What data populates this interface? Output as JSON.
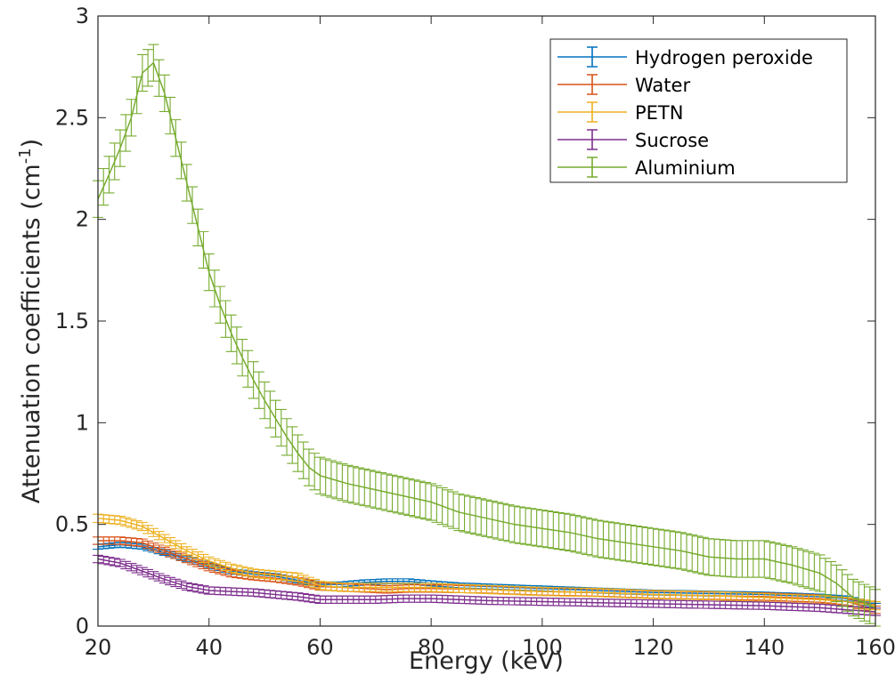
{
  "chart_data": {
    "type": "line",
    "error_bars": true,
    "xlabel": "Energy (keV)",
    "ylabel_main": "Attenuation coefficients (cm",
    "ylabel_sup": "-1",
    "ylabel_close": ")",
    "xlim": [
      20,
      160
    ],
    "ylim": [
      0,
      3
    ],
    "xticks": [
      20,
      40,
      60,
      80,
      100,
      120,
      140,
      160
    ],
    "yticks": [
      0,
      0.5,
      1,
      1.5,
      2,
      2.5,
      3
    ],
    "xtick_labels": [
      "20",
      "40",
      "60",
      "80",
      "100",
      "120",
      "140",
      "160"
    ],
    "ytick_labels": [
      "0",
      "0.5",
      "1",
      "1.5",
      "2",
      "2.5",
      "3"
    ],
    "grid": false,
    "legend_position": "top-right",
    "series": [
      {
        "name": "Hydrogen peroxide",
        "color": "#0072BD",
        "err": 0.012,
        "points": [
          [
            20,
            0.39
          ],
          [
            24,
            0.4
          ],
          [
            28,
            0.39
          ],
          [
            32,
            0.36
          ],
          [
            36,
            0.33
          ],
          [
            40,
            0.3
          ],
          [
            44,
            0.27
          ],
          [
            48,
            0.255
          ],
          [
            52,
            0.245
          ],
          [
            56,
            0.225
          ],
          [
            60,
            0.205
          ],
          [
            64,
            0.205
          ],
          [
            68,
            0.215
          ],
          [
            72,
            0.22
          ],
          [
            76,
            0.22
          ],
          [
            80,
            0.21
          ],
          [
            85,
            0.2
          ],
          [
            90,
            0.195
          ],
          [
            100,
            0.185
          ],
          [
            110,
            0.175
          ],
          [
            120,
            0.165
          ],
          [
            130,
            0.16
          ],
          [
            140,
            0.155
          ],
          [
            150,
            0.145
          ],
          [
            155,
            0.135
          ],
          [
            160,
            0.1
          ]
        ]
      },
      {
        "name": "Water",
        "color": "#D95319",
        "err": 0.018,
        "points": [
          [
            20,
            0.42
          ],
          [
            24,
            0.42
          ],
          [
            28,
            0.41
          ],
          [
            32,
            0.37
          ],
          [
            36,
            0.33
          ],
          [
            40,
            0.29
          ],
          [
            44,
            0.26
          ],
          [
            48,
            0.245
          ],
          [
            52,
            0.235
          ],
          [
            56,
            0.22
          ],
          [
            60,
            0.195
          ],
          [
            64,
            0.19
          ],
          [
            68,
            0.185
          ],
          [
            72,
            0.18
          ],
          [
            76,
            0.185
          ],
          [
            80,
            0.185
          ],
          [
            90,
            0.18
          ],
          [
            100,
            0.17
          ],
          [
            110,
            0.165
          ],
          [
            120,
            0.155
          ],
          [
            130,
            0.15
          ],
          [
            140,
            0.145
          ],
          [
            150,
            0.135
          ],
          [
            155,
            0.12
          ],
          [
            160,
            0.08
          ]
        ]
      },
      {
        "name": "PETN",
        "color": "#EDB120",
        "err": 0.02,
        "points": [
          [
            20,
            0.53
          ],
          [
            24,
            0.52
          ],
          [
            28,
            0.49
          ],
          [
            32,
            0.43
          ],
          [
            36,
            0.37
          ],
          [
            40,
            0.32
          ],
          [
            44,
            0.285
          ],
          [
            48,
            0.26
          ],
          [
            52,
            0.25
          ],
          [
            56,
            0.24
          ],
          [
            60,
            0.2
          ],
          [
            64,
            0.19
          ],
          [
            68,
            0.19
          ],
          [
            72,
            0.19
          ],
          [
            76,
            0.19
          ],
          [
            80,
            0.19
          ],
          [
            90,
            0.18
          ],
          [
            100,
            0.17
          ],
          [
            110,
            0.165
          ],
          [
            120,
            0.155
          ],
          [
            130,
            0.15
          ],
          [
            140,
            0.14
          ],
          [
            150,
            0.13
          ],
          [
            155,
            0.12
          ],
          [
            160,
            0.1
          ]
        ]
      },
      {
        "name": "Sucrose",
        "color": "#7E2F8E",
        "err": 0.018,
        "points": [
          [
            20,
            0.33
          ],
          [
            24,
            0.31
          ],
          [
            28,
            0.27
          ],
          [
            32,
            0.23
          ],
          [
            36,
            0.195
          ],
          [
            40,
            0.175
          ],
          [
            44,
            0.17
          ],
          [
            48,
            0.165
          ],
          [
            52,
            0.155
          ],
          [
            56,
            0.145
          ],
          [
            60,
            0.13
          ],
          [
            65,
            0.13
          ],
          [
            70,
            0.13
          ],
          [
            75,
            0.135
          ],
          [
            80,
            0.135
          ],
          [
            90,
            0.125
          ],
          [
            100,
            0.12
          ],
          [
            110,
            0.115
          ],
          [
            120,
            0.11
          ],
          [
            130,
            0.105
          ],
          [
            140,
            0.1
          ],
          [
            150,
            0.09
          ],
          [
            155,
            0.08
          ],
          [
            160,
            0.07
          ]
        ]
      },
      {
        "name": "Aluminium",
        "color": "#77AC30",
        "err": 0.09,
        "points": [
          [
            20,
            2.1
          ],
          [
            22,
            2.22
          ],
          [
            24,
            2.35
          ],
          [
            26,
            2.5
          ],
          [
            28,
            2.72
          ],
          [
            30,
            2.77
          ],
          [
            32,
            2.62
          ],
          [
            34,
            2.4
          ],
          [
            36,
            2.18
          ],
          [
            38,
            1.96
          ],
          [
            40,
            1.74
          ],
          [
            42,
            1.58
          ],
          [
            44,
            1.44
          ],
          [
            46,
            1.32
          ],
          [
            48,
            1.21
          ],
          [
            50,
            1.11
          ],
          [
            52,
            1.02
          ],
          [
            54,
            0.93
          ],
          [
            56,
            0.85
          ],
          [
            58,
            0.78
          ],
          [
            60,
            0.74
          ],
          [
            65,
            0.7
          ],
          [
            70,
            0.67
          ],
          [
            75,
            0.64
          ],
          [
            80,
            0.61
          ],
          [
            85,
            0.56
          ],
          [
            90,
            0.53
          ],
          [
            95,
            0.5
          ],
          [
            100,
            0.48
          ],
          [
            105,
            0.46
          ],
          [
            110,
            0.43
          ],
          [
            115,
            0.41
          ],
          [
            120,
            0.39
          ],
          [
            125,
            0.37
          ],
          [
            130,
            0.34
          ],
          [
            135,
            0.33
          ],
          [
            140,
            0.33
          ],
          [
            145,
            0.3
          ],
          [
            150,
            0.26
          ],
          [
            153,
            0.21
          ],
          [
            156,
            0.14
          ],
          [
            160,
            0.09
          ]
        ]
      }
    ]
  }
}
